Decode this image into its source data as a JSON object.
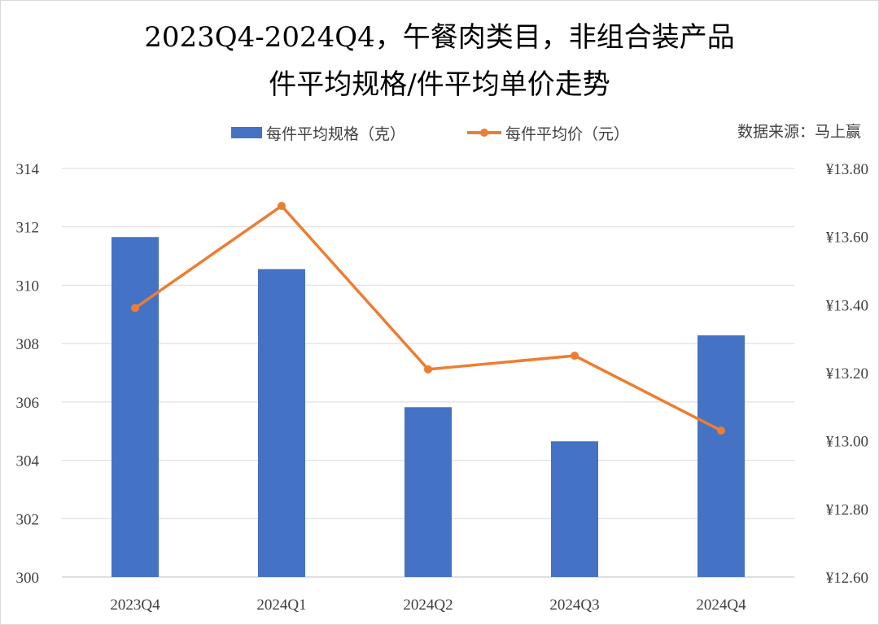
{
  "chart_data": {
    "type": "bar+line",
    "title_lines": [
      "2023Q4-2024Q4，午餐肉类目，非组合装产品",
      "件平均规格/件平均单价走势"
    ],
    "source": "数据来源：马上赢",
    "categories": [
      "2023Q4",
      "2024Q1",
      "2024Q2",
      "2024Q3",
      "2024Q4"
    ],
    "series": [
      {
        "name": "每件平均规格（克）",
        "type": "bar",
        "axis": "left",
        "color": "#4472C4",
        "values": [
          311.65,
          310.55,
          305.82,
          304.65,
          308.28
        ]
      },
      {
        "name": "每件平均价（元）",
        "type": "line",
        "axis": "right",
        "color": "#ED7D31",
        "values": [
          13.39,
          13.69,
          13.21,
          13.25,
          13.03
        ]
      }
    ],
    "y_left": {
      "min": 300,
      "max": 314,
      "ticks": [
        "300",
        "302",
        "304",
        "306",
        "308",
        "310",
        "312",
        "314"
      ]
    },
    "y_right": {
      "min": 12.6,
      "max": 13.8,
      "ticks": [
        "¥12.60",
        "¥12.80",
        "¥13.00",
        "¥13.20",
        "¥13.40",
        "¥13.60",
        "¥13.80"
      ]
    },
    "grid": true,
    "legend_position": "top"
  }
}
